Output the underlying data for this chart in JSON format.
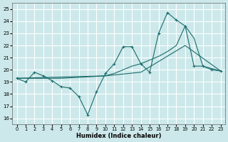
{
  "xlabel": "Humidex (Indice chaleur)",
  "bg_color": "#cce8ea",
  "grid_color": "#ffffff",
  "line_color": "#1a6b6b",
  "xlim": [
    -0.5,
    23.5
  ],
  "ylim": [
    15.5,
    25.5
  ],
  "xticks": [
    0,
    1,
    2,
    3,
    4,
    5,
    6,
    7,
    8,
    9,
    10,
    11,
    12,
    13,
    14,
    15,
    16,
    17,
    18,
    19,
    20,
    21,
    22,
    23
  ],
  "yticks": [
    16,
    17,
    18,
    19,
    20,
    21,
    22,
    23,
    24,
    25
  ],
  "line1_x": [
    0,
    1,
    2,
    3,
    4,
    5,
    6,
    7,
    8,
    9,
    10,
    11,
    12,
    13,
    14,
    15,
    16,
    17,
    18,
    19,
    20,
    21,
    22,
    23
  ],
  "line1_y": [
    19.3,
    19.0,
    19.8,
    19.5,
    19.1,
    18.6,
    18.5,
    17.8,
    16.3,
    18.2,
    19.7,
    20.5,
    21.9,
    21.9,
    20.5,
    19.8,
    23.0,
    24.7,
    24.1,
    23.6,
    20.3,
    20.3,
    20.0,
    19.9
  ],
  "line2_x": [
    0,
    10,
    11,
    12,
    13,
    14,
    15,
    16,
    17,
    18,
    19,
    20,
    21,
    22,
    23
  ],
  "line2_y": [
    19.3,
    19.5,
    19.7,
    20.0,
    20.3,
    20.5,
    20.8,
    21.1,
    21.5,
    22.0,
    23.6,
    22.6,
    20.3,
    20.1,
    19.9
  ],
  "line3_x": [
    0,
    5,
    10,
    14,
    19,
    23
  ],
  "line3_y": [
    19.3,
    19.3,
    19.5,
    19.8,
    22.0,
    19.9
  ]
}
